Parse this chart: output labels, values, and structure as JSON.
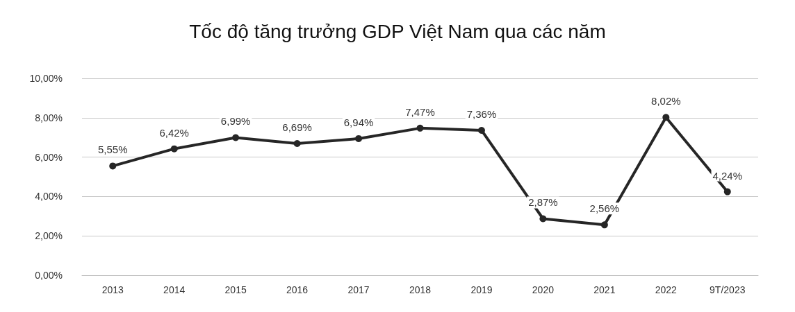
{
  "chart_data": {
    "type": "line",
    "title": "Tốc độ tăng trưởng GDP Việt Nam qua các năm",
    "categories": [
      "2013",
      "2014",
      "2015",
      "2016",
      "2017",
      "2018",
      "2019",
      "2020",
      "2021",
      "2022",
      "9T/2023"
    ],
    "series": [
      {
        "color": "#262626",
        "values": [
          5.55,
          6.42,
          6.99,
          6.69,
          6.94,
          7.47,
          7.36,
          2.87,
          2.56,
          8.02,
          4.24
        ],
        "value_labels": [
          "5,55%",
          "6,42%",
          "6,99%",
          "6,69%",
          "6,94%",
          "7,47%",
          "7,36%",
          "2,87%",
          "2,56%",
          "8,02%",
          "4,24%"
        ]
      }
    ],
    "ylim": [
      0,
      10
    ],
    "yticks": [
      {
        "value": 0,
        "label": "0,00%"
      },
      {
        "value": 2,
        "label": "2,00%"
      },
      {
        "value": 4,
        "label": "4,00%"
      },
      {
        "value": 6,
        "label": "6,00%"
      },
      {
        "value": 8,
        "label": "8,00%"
      },
      {
        "value": 10,
        "label": "10,00%"
      }
    ],
    "grid": "y",
    "marker": "circle",
    "line_style": "solid"
  }
}
